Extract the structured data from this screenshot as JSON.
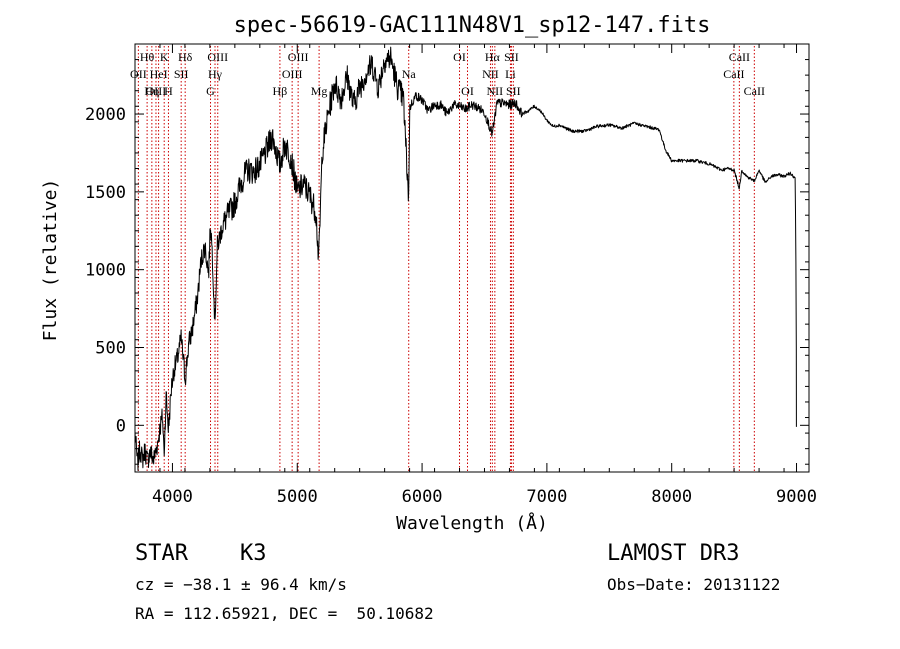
{
  "chart_data": {
    "type": "line",
    "title": "spec-56619-GAC111N48V1_sp12-147.fits",
    "xlabel": "Wavelength (Å)",
    "ylabel": "Flux (relative)",
    "xlim": [
      3700,
      9100
    ],
    "ylim": [
      -300,
      2450
    ],
    "x_ticks": [
      4000,
      5000,
      6000,
      7000,
      8000,
      9000
    ],
    "y_ticks": [
      0,
      500,
      1000,
      1500,
      2000
    ],
    "x_tick_labels": [
      "4000",
      "5000",
      "6000",
      "7000",
      "8000",
      "9000"
    ],
    "y_tick_labels": [
      "0",
      "500",
      "1000",
      "1500",
      "2000"
    ],
    "series": [
      {
        "name": "flux",
        "x": [
          3700,
          3720,
          3740,
          3760,
          3780,
          3800,
          3820,
          3850,
          3880,
          3900,
          3920,
          3933,
          3950,
          3968,
          3990,
          4010,
          4040,
          4070,
          4102,
          4130,
          4160,
          4200,
          4230,
          4260,
          4290,
          4305,
          4320,
          4340,
          4360,
          4400,
          4450,
          4500,
          4550,
          4600,
          4650,
          4700,
          4750,
          4800,
          4861,
          4900,
          4950,
          5000,
          5050,
          5100,
          5150,
          5172,
          5200,
          5250,
          5300,
          5350,
          5400,
          5450,
          5500,
          5550,
          5600,
          5650,
          5700,
          5750,
          5800,
          5850,
          5893,
          5900,
          5950,
          6000,
          6050,
          6100,
          6150,
          6200,
          6250,
          6300,
          6350,
          6400,
          6450,
          6500,
          6563,
          6600,
          6650,
          6700,
          6750,
          6800,
          6850,
          6900,
          6950,
          7000,
          7050,
          7100,
          7150,
          7200,
          7300,
          7400,
          7500,
          7600,
          7700,
          7800,
          7850,
          7900,
          7950,
          8000,
          8100,
          8200,
          8300,
          8400,
          8450,
          8500,
          8542,
          8560,
          8600,
          8662,
          8700,
          8750,
          8800,
          8850,
          8900,
          8950,
          8990,
          9000
        ],
        "y": [
          -50,
          -250,
          -150,
          -220,
          -160,
          -230,
          -170,
          -220,
          -120,
          -20,
          60,
          -180,
          200,
          -30,
          230,
          350,
          430,
          560,
          300,
          520,
          620,
          820,
          1060,
          1150,
          980,
          1300,
          1100,
          660,
          1150,
          1280,
          1360,
          1430,
          1560,
          1640,
          1630,
          1670,
          1760,
          1860,
          1670,
          1810,
          1720,
          1500,
          1550,
          1480,
          1370,
          1050,
          1760,
          2010,
          2200,
          2100,
          2240,
          2060,
          2170,
          2260,
          2320,
          2170,
          2350,
          2360,
          2180,
          2100,
          1450,
          2040,
          2120,
          2090,
          2020,
          2060,
          2060,
          2000,
          2060,
          2050,
          2030,
          2060,
          2040,
          2010,
          1870,
          2070,
          2070,
          2060,
          2070,
          2000,
          2020,
          2050,
          2020,
          1960,
          1920,
          1930,
          1910,
          1890,
          1890,
          1920,
          1930,
          1910,
          1940,
          1920,
          1910,
          1900,
          1770,
          1700,
          1700,
          1700,
          1680,
          1640,
          1650,
          1640,
          1520,
          1640,
          1600,
          1570,
          1640,
          1560,
          1600,
          1610,
          1600,
          1620,
          1590,
          500
        ]
      }
    ],
    "spectral_lines": [
      {
        "label": "Hθ",
        "x": 3797,
        "row": 0
      },
      {
        "label": "OII",
        "x": 3727,
        "row": 1
      },
      {
        "label": "OIII",
        "x": 3868,
        "row": 2
      },
      {
        "label": "HeI",
        "x": 3889,
        "row": 1
      },
      {
        "label": "Hη",
        "x": 3835,
        "row": 2
      },
      {
        "label": "K",
        "x": 3934,
        "row": 0
      },
      {
        "label": "H",
        "x": 3968,
        "row": 2
      },
      {
        "label": "SII",
        "x": 4070,
        "row": 1
      },
      {
        "label": "Hδ",
        "x": 4102,
        "row": 0
      },
      {
        "label": "OIII",
        "x": 4363,
        "row": 0
      },
      {
        "label": "Hγ",
        "x": 4341,
        "row": 1
      },
      {
        "label": "G",
        "x": 4305,
        "row": 2
      },
      {
        "label": "Hβ",
        "x": 4861,
        "row": 2
      },
      {
        "label": "OIII",
        "x": 4959,
        "row": 1
      },
      {
        "label": "OIII",
        "x": 5007,
        "row": 0
      },
      {
        "label": "Mg",
        "x": 5175,
        "row": 2
      },
      {
        "label": "Na",
        "x": 5893,
        "row": 1
      },
      {
        "label": "OI",
        "x": 6300,
        "row": 0
      },
      {
        "label": "OI",
        "x": 6364,
        "row": 2
      },
      {
        "label": "Hα",
        "x": 6563,
        "row": 0
      },
      {
        "label": "NII",
        "x": 6548,
        "row": 1
      },
      {
        "label": "NII",
        "x": 6583,
        "row": 2
      },
      {
        "label": "SII",
        "x": 6716,
        "row": 0
      },
      {
        "label": "Li",
        "x": 6708,
        "row": 1
      },
      {
        "label": "SII",
        "x": 6731,
        "row": 2
      },
      {
        "label": "CaII",
        "x": 8542,
        "row": 0
      },
      {
        "label": "CaII",
        "x": 8498,
        "row": 1
      },
      {
        "label": "CaII",
        "x": 8662,
        "row": 2
      }
    ],
    "line_color": "#000000",
    "marker_color": "#cc0000",
    "grid": false
  },
  "info": {
    "object_class": "STAR",
    "subclass": "K3",
    "survey": "LAMOST DR3",
    "cz": "cz = −38.1 ± 96.4 km/s",
    "obs_date": "Obs−Date: 20131122",
    "coords": "RA = 112.65921, DEC =  50.10682"
  }
}
